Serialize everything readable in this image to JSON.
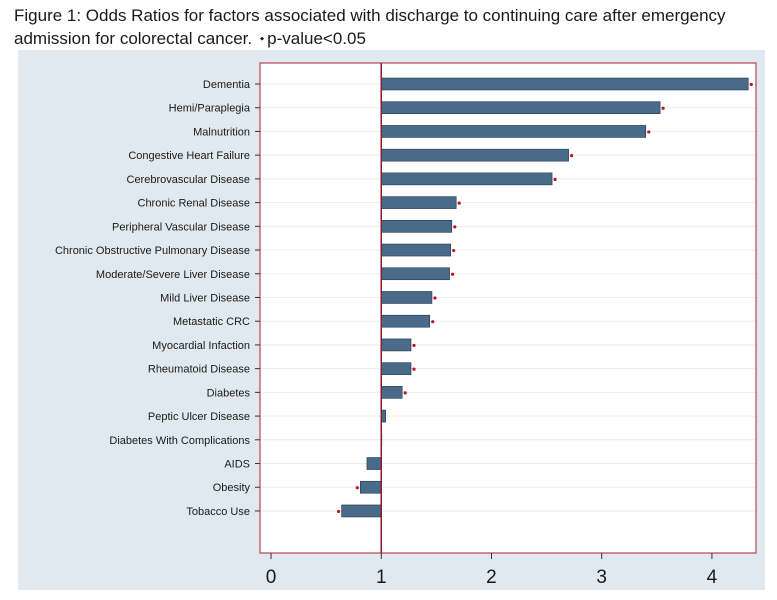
{
  "figure": {
    "caption": "Figure 1: Odds Ratios for factors associated with discharge to continuing care after emergency admission for colorectal cancer.",
    "significance_marker": "⬩",
    "significance_note": "p-value<0.05"
  },
  "colors": {
    "outer_background": "#dfe9ef",
    "plot_background": "#ffffff",
    "bar_fill": "#4a6a8a",
    "bar_stroke": "#243a52",
    "reference_line": "#8b1a2c",
    "frame": "#b02030",
    "gridline": "#e9eef2",
    "marker": "#c0122a"
  },
  "chart_data": {
    "type": "bar",
    "orientation": "horizontal",
    "title": "",
    "xlabel": "",
    "ylabel": "",
    "xlim": [
      -0.1,
      4.4
    ],
    "reference_value": 1,
    "xticks": [
      0,
      1,
      2,
      3,
      4
    ],
    "grid": true,
    "legend": "none",
    "categories": [
      "Dementia",
      "Hemi/Paraplegia",
      "Malnutrition",
      "Congestive Heart Failure",
      "Cerebrovascular Disease",
      "Chronic Renal Disease",
      "Peripheral Vascular Disease",
      "Chronic Obstructive Pulmonary Disease",
      "Moderate/Severe Liver Disease",
      "Mild Liver Disease",
      "Metastatic CRC",
      "Myocardial Infaction",
      "Rheumatoid Disease",
      "Diabetes",
      "Peptic Ulcer Disease",
      "Diabetes With Complications",
      "AIDS",
      "Obesity",
      "Tobacco Use"
    ],
    "values": [
      4.33,
      3.53,
      3.4,
      2.7,
      2.55,
      1.68,
      1.64,
      1.63,
      1.62,
      1.46,
      1.44,
      1.27,
      1.27,
      1.19,
      1.04,
      1.0,
      0.87,
      0.81,
      0.64
    ],
    "significant": [
      true,
      true,
      true,
      true,
      true,
      true,
      true,
      true,
      true,
      true,
      true,
      true,
      true,
      true,
      false,
      false,
      false,
      true,
      true
    ]
  }
}
